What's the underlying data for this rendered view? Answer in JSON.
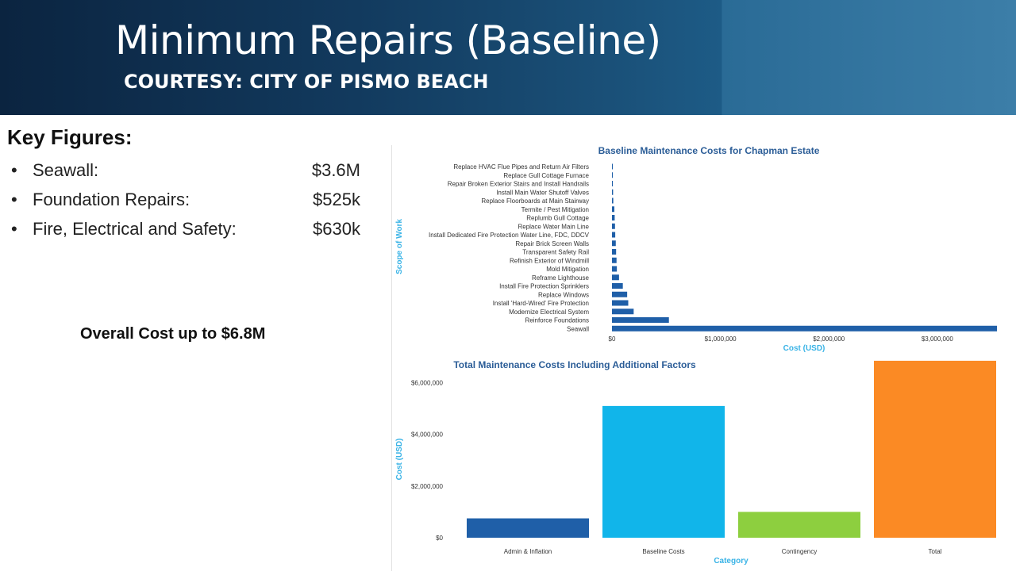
{
  "slide": {
    "title": "Minimum Repairs (Baseline)",
    "courtesy": "COURTESY:  CITY OF PISMO BEACH"
  },
  "key_figures": {
    "heading": "Key Figures:",
    "items": [
      {
        "bullet": "•",
        "label": "Seawall:",
        "value": "$3.6M"
      },
      {
        "bullet": "•",
        "label": "Foundation Repairs:",
        "value": "$525k"
      },
      {
        "bullet": "•",
        "label": "Fire, Electrical and Safety:",
        "value": "$630k"
      }
    ],
    "overall": "Overall Cost up to $6.8M"
  },
  "colors": {
    "bar_dark_blue": "#1f5fa8",
    "title_blue": "#2b5d97",
    "axis_label_cyan": "#39b3e6",
    "cyan": "#11b5ea",
    "green": "#8dcf3f",
    "orange": "#fb8a24"
  },
  "chart_data": [
    {
      "type": "bar",
      "orientation": "horizontal",
      "title": "Baseline Maintenance Costs for Chapman Estate",
      "xlabel": "Cost (USD)",
      "ylabel": "Scope of Work",
      "xlim": [
        0,
        3550000
      ],
      "x_ticks": [
        0,
        1000000,
        2000000,
        3000000
      ],
      "x_tick_labels": [
        "$0",
        "$1,000,000",
        "$2,000,000",
        "$3,000,000"
      ],
      "categories": [
        "Replace HVAC Flue Pipes and Return Air Filters",
        "Replace Gull Cottage Furnace",
        "Repair Broken Exterior Stairs and Install Handrails",
        "Install Main Water Shutoff Valves",
        "Replace Floorboards at Main Stairway",
        "Termite / Pest Mitigation",
        "Replumb Gull Cottage",
        "Replace Water Main Line",
        "Install Dedicated Fire Protection Water Line, FDC, DDCV",
        "Repair Brick Screen Walls",
        "Transparent Safety Rail",
        "Refinish Exterior of Windmill",
        "Mold Mitigation",
        "Reframe Lighthouse",
        "Install Fire Protection Sprinklers",
        "Replace Windows",
        "Install 'Hard-Wired' Fire Protection",
        "Modernize Electrical System",
        "Reinforce Foundations",
        "Seawall"
      ],
      "values": [
        5000,
        6000,
        8000,
        10000,
        12000,
        22000,
        25000,
        28000,
        30000,
        35000,
        38000,
        42000,
        45000,
        65000,
        100000,
        140000,
        150000,
        200000,
        525000,
        3550000
      ],
      "color": "#1f5fa8",
      "grid": false,
      "legend": "none"
    },
    {
      "type": "bar",
      "title": "Total Maintenance Costs Including Additional Factors",
      "xlabel": "Category",
      "ylabel": "Cost (USD)",
      "ylim": [
        0,
        7000000
      ],
      "y_ticks": [
        0,
        2000000,
        4000000,
        6000000
      ],
      "y_tick_labels": [
        "$0",
        "$2,000,000",
        "$4,000,000",
        "$6,000,000"
      ],
      "categories": [
        "Admin & Inflation",
        "Baseline Costs",
        "Contingency",
        "Total"
      ],
      "values": [
        750000,
        5100000,
        1000000,
        6850000
      ],
      "colors": [
        "#1f5fa8",
        "#11b5ea",
        "#8dcf3f",
        "#fb8a24"
      ],
      "grid": false,
      "legend": "none"
    }
  ]
}
